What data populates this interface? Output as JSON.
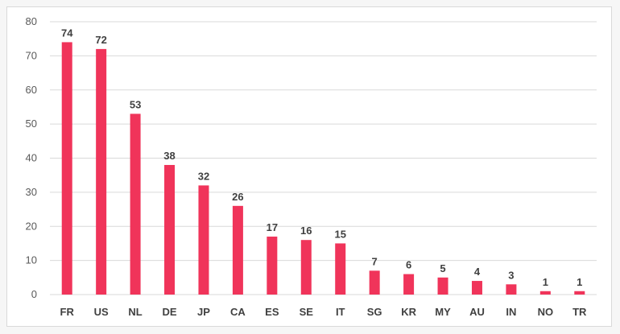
{
  "chart_data": {
    "type": "bar",
    "title": "",
    "xlabel": "",
    "ylabel": "",
    "categories": [
      "FR",
      "US",
      "NL",
      "DE",
      "JP",
      "CA",
      "ES",
      "SE",
      "IT",
      "SG",
      "KR",
      "MY",
      "AU",
      "IN",
      "NO",
      "TR"
    ],
    "values": [
      74,
      72,
      53,
      38,
      32,
      26,
      17,
      16,
      15,
      7,
      6,
      5,
      4,
      3,
      1,
      1
    ],
    "ylim": [
      0,
      80
    ],
    "yticks": [
      0,
      10,
      20,
      30,
      40,
      50,
      60,
      70,
      80
    ],
    "grid": true,
    "legend": "none",
    "data_labels": true,
    "bar_color": "#f0345a"
  }
}
